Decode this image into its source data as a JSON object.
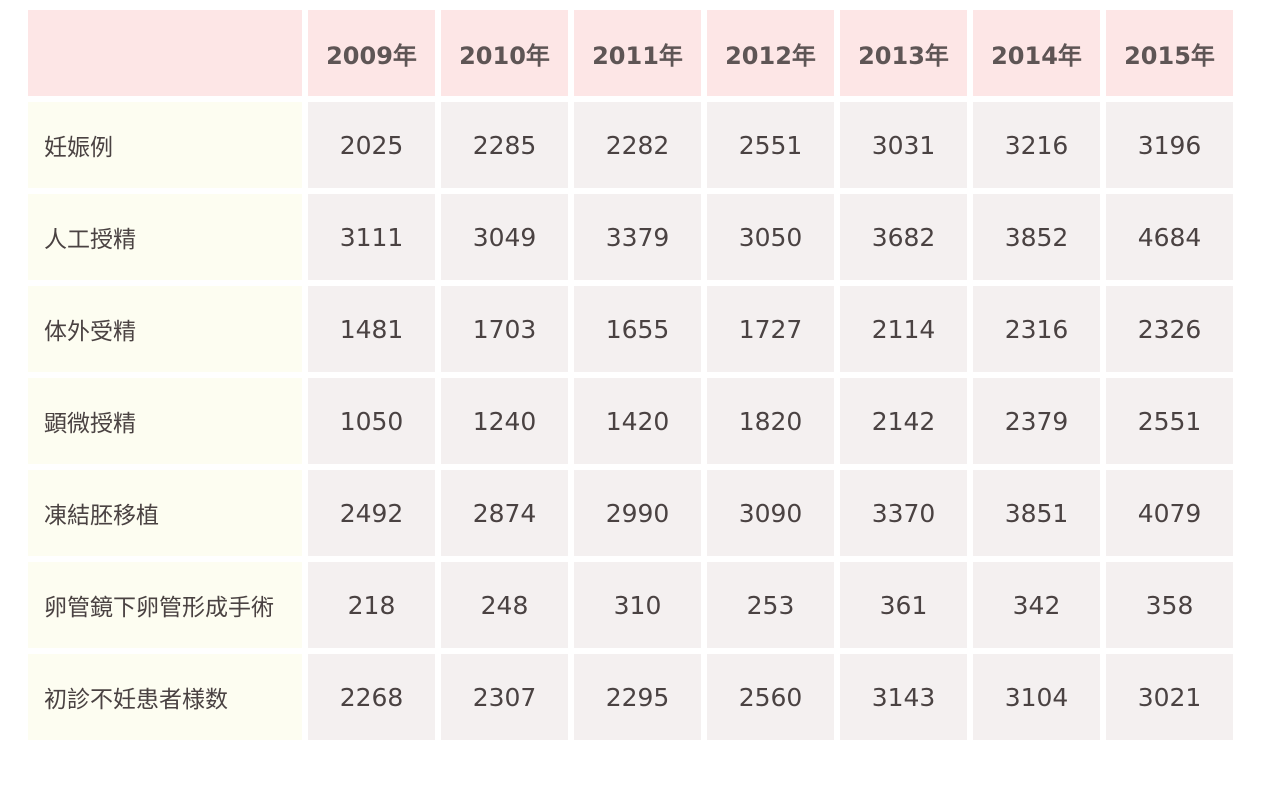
{
  "table": {
    "corner": "",
    "headers": [
      "2009年",
      "2010年",
      "2011年",
      "2012年",
      "2013年",
      "2014年",
      "2015年"
    ],
    "rows": [
      {
        "label": "妊娠例",
        "values": [
          "2025",
          "2285",
          "2282",
          "2551",
          "3031",
          "3216",
          "3196"
        ]
      },
      {
        "label": "人工授精",
        "values": [
          "3111",
          "3049",
          "3379",
          "3050",
          "3682",
          "3852",
          "4684"
        ]
      },
      {
        "label": "体外受精",
        "values": [
          "1481",
          "1703",
          "1655",
          "1727",
          "2114",
          "2316",
          "2326"
        ]
      },
      {
        "label": "顕微授精",
        "values": [
          "1050",
          "1240",
          "1420",
          "1820",
          "2142",
          "2379",
          "2551"
        ]
      },
      {
        "label": "凍結胚移植",
        "values": [
          "2492",
          "2874",
          "2990",
          "3090",
          "3370",
          "3851",
          "4079"
        ]
      },
      {
        "label": "卵管鏡下卵管形成手術",
        "values": [
          "218",
          "248",
          "310",
          "253",
          "361",
          "342",
          "358"
        ]
      },
      {
        "label": "初診不妊患者様数",
        "values": [
          "2268",
          "2307",
          "2295",
          "2560",
          "3143",
          "3104",
          "3021"
        ]
      }
    ]
  },
  "colors": {
    "header_bg": "#fde6e6",
    "label_bg": "#fdfdf1",
    "cell_bg": "#f4f0f0",
    "text": "#4a4242"
  }
}
